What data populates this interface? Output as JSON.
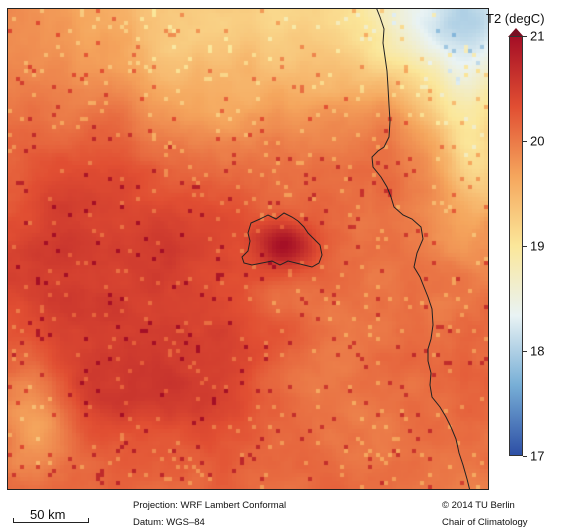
{
  "colorbar": {
    "title": "T2 (degC)",
    "min": 17,
    "max": 21,
    "ticks": [
      {
        "value": 21,
        "label": "21"
      },
      {
        "value": 20,
        "label": "20"
      },
      {
        "value": 19,
        "label": "19"
      },
      {
        "value": 18,
        "label": "18"
      },
      {
        "value": 17,
        "label": "17"
      }
    ],
    "colors": [
      "#2d4fa5",
      "#77aed6",
      "#e9f3f4",
      "#fbe79a",
      "#f5a65d",
      "#e14e32",
      "#a50f26"
    ]
  },
  "map": {
    "variable": "T2",
    "boundary_color": "#222222"
  },
  "scalebar": {
    "label": "50 km"
  },
  "footer": {
    "projection": "Projection: WRF Lambert Conformal",
    "datum": "Datum: WGS–84",
    "copyright": "© 2014 TU Berlin",
    "institution": "Chair of Climatology"
  }
}
